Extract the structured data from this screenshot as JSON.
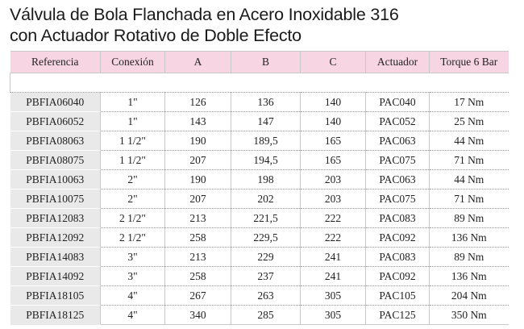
{
  "title": {
    "line1": "Válvula de Bola Flanchada en Acero Inoxidable 316",
    "line2": "con Actuador Rotativo de Doble Efecto"
  },
  "table": {
    "headers": [
      "Referencia",
      "Conexión",
      "A",
      "B",
      "C",
      "Actuador",
      "Torque 6 Bar"
    ],
    "rows": [
      [
        "PBFIA06040",
        "1\"",
        "126",
        "136",
        "140",
        "PAC040",
        "17 Nm"
      ],
      [
        "PBFIA06052",
        "1\"",
        "143",
        "147",
        "140",
        "PAC052",
        "25 Nm"
      ],
      [
        "PBFIA08063",
        "1 1/2\"",
        "190",
        "189,5",
        "165",
        "PAC063",
        "44 Nm"
      ],
      [
        "PBFIA08075",
        "1 1/2\"",
        "207",
        "194,5",
        "165",
        "PAC075",
        "71 Nm"
      ],
      [
        "PBFIA10063",
        "2\"",
        "190",
        "198",
        "203",
        "PAC063",
        "44 Nm"
      ],
      [
        "PBFIA10075",
        "2\"",
        "207",
        "202",
        "203",
        "PAC075",
        "71 Nm"
      ],
      [
        "PBFIA12083",
        "2 1/2\"",
        "213",
        "221,5",
        "222",
        "PAC083",
        "89 Nm"
      ],
      [
        "PBFIA12092",
        "2 1/2\"",
        "258",
        "229,5",
        "222",
        "PAC092",
        "136 Nm"
      ],
      [
        "PBFIA14083",
        "3\"",
        "213",
        "229",
        "241",
        "PAC083",
        "89 Nm"
      ],
      [
        "PBFIA14092",
        "3\"",
        "258",
        "237",
        "241",
        "PAC092",
        "136 Nm"
      ],
      [
        "PBFIA18105",
        "4\"",
        "267",
        "263",
        "305",
        "PAC105",
        "204 Nm"
      ],
      [
        "PBFIA18125",
        "4\"",
        "340",
        "285",
        "305",
        "PAC125",
        "350 Nm"
      ]
    ]
  },
  "colors": {
    "header_bg": "#f7d5e2",
    "ref_col_bg": "#e9e9e9",
    "grid": "#c8c8c8"
  }
}
